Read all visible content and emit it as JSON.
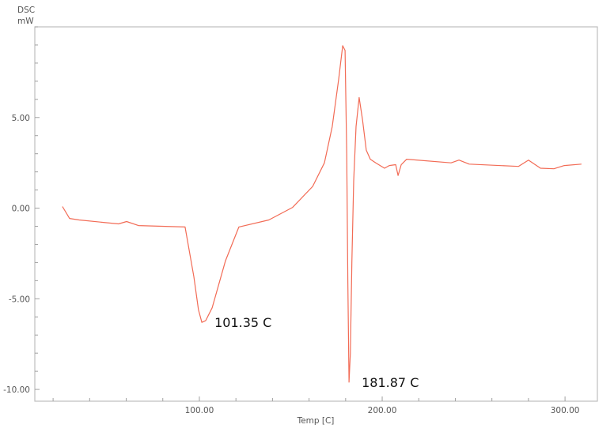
{
  "chart_data": {
    "type": "line",
    "title": "",
    "ylabel_line1": "DSC",
    "ylabel_line2": "mW",
    "xlabel": "Temp  [C]",
    "xlim": [
      10,
      317.7
    ],
    "ylim": [
      -10.65,
      10
    ],
    "grid": false,
    "line_color": "#f26b55",
    "x_ticks": [
      100,
      200,
      300
    ],
    "x_tick_labels": [
      "100.00",
      "200.00",
      "300.00"
    ],
    "x_minor_step": 20,
    "y_ticks": [
      5,
      0,
      -5,
      -10
    ],
    "y_tick_labels": [
      "5.00",
      "0.00",
      "-5.00",
      "-10.00"
    ],
    "y_minor_step": 1,
    "series": [
      {
        "x": [
          25.1,
          29,
          34.2,
          55.8,
          60.2,
          66.7,
          92.2,
          97,
          99.5,
          101.35,
          103.5,
          107,
          114.3,
          121.6,
          138,
          151,
          162,
          168.4,
          172.7,
          176.2,
          178.4,
          179.7,
          180.6,
          181.2,
          181.87,
          182.6,
          183.4,
          184.4,
          185.7,
          187.4,
          189.2,
          191.3,
          193.5,
          196.5,
          201.3,
          203.9,
          207.4,
          208.7,
          210.4,
          213.4,
          237.7,
          242,
          247.6,
          274.5,
          280,
          286.6,
          293.9,
          299.6,
          309
        ],
        "y": [
          0.09,
          -0.57,
          -0.65,
          -0.87,
          -0.74,
          -0.96,
          -1.04,
          -3.78,
          -5.6,
          -6.3,
          -6.2,
          -5.5,
          -2.9,
          -1.04,
          -0.65,
          0.04,
          1.2,
          2.5,
          4.5,
          7.1,
          8.96,
          8.7,
          3.0,
          -4.0,
          -9.6,
          -8.0,
          -3.0,
          1.5,
          4.5,
          6.1,
          4.9,
          3.2,
          2.7,
          2.5,
          2.2,
          2.35,
          2.4,
          1.8,
          2.4,
          2.7,
          2.5,
          2.65,
          2.43,
          2.3,
          2.65,
          2.2,
          2.17,
          2.35,
          2.43
        ]
      }
    ],
    "annotations": [
      {
        "text": "101.35 C",
        "x": 101.35,
        "y": -6.3
      },
      {
        "text": "181.87 C",
        "x": 181.87,
        "y": -9.6
      }
    ]
  }
}
